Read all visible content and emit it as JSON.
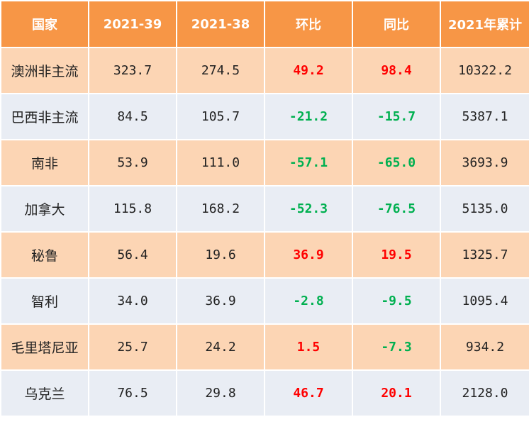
{
  "table": {
    "headers": [
      "国家",
      "2021-39",
      "2021-38",
      "环比",
      "同比",
      "2021年累计"
    ],
    "rows": [
      {
        "country": "澳洲非主流",
        "w39": "323.7",
        "w38": "274.5",
        "mom": "49.2",
        "yoy": "98.4",
        "cum": "10322.2"
      },
      {
        "country": "巴西非主流",
        "w39": "84.5",
        "w38": "105.7",
        "mom": "-21.2",
        "yoy": "-15.7",
        "cum": "5387.1"
      },
      {
        "country": "南非",
        "w39": "53.9",
        "w38": "111.0",
        "mom": "-57.1",
        "yoy": "-65.0",
        "cum": "3693.9"
      },
      {
        "country": "加拿大",
        "w39": "115.8",
        "w38": "168.2",
        "mom": "-52.3",
        "yoy": "-76.5",
        "cum": "5135.0"
      },
      {
        "country": "秘鲁",
        "w39": "56.4",
        "w38": "19.6",
        "mom": "36.9",
        "yoy": "19.5",
        "cum": "1325.7"
      },
      {
        "country": "智利",
        "w39": "34.0",
        "w38": "36.9",
        "mom": "-2.8",
        "yoy": "-9.5",
        "cum": "1095.4"
      },
      {
        "country": "毛里塔尼亚",
        "w39": "25.7",
        "w38": "24.2",
        "mom": "1.5",
        "yoy": "-7.3",
        "cum": "934.2"
      },
      {
        "country": "乌克兰",
        "w39": "76.5",
        "w38": "29.8",
        "mom": "46.7",
        "yoy": "20.1",
        "cum": "2128.0"
      }
    ]
  },
  "colors": {
    "header_bg": "#f79646",
    "row_odd_bg": "#fcd5b4",
    "row_even_bg": "#e9edf4",
    "positive": "#ff0000",
    "negative": "#00b050"
  }
}
